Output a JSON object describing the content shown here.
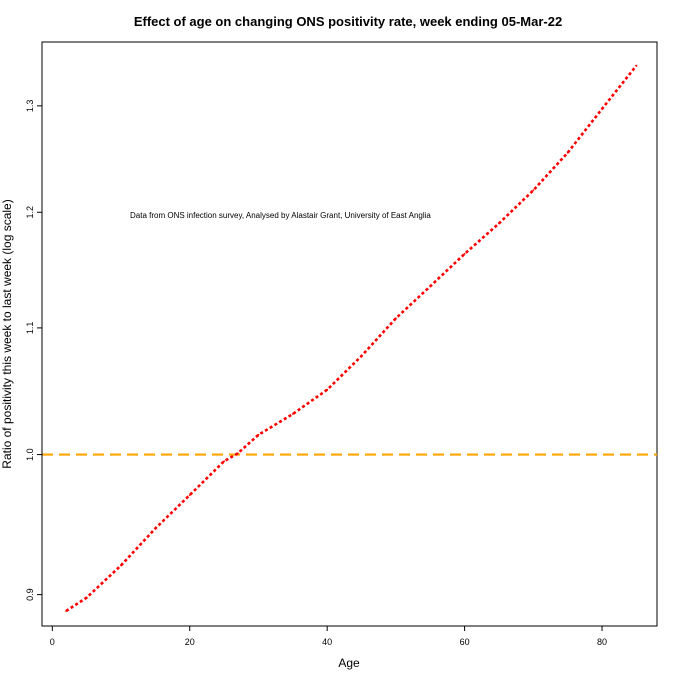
{
  "chart_data": {
    "type": "line",
    "title": "Effect of age on changing ONS positivity rate, week ending 05-Mar-22",
    "xlabel": "Age",
    "ylabel": "Ratio of positivity this week to last week (log scale)",
    "annotation": "Data from ONS infection survey, Analysed by Alastair Grant, University of East Anglia",
    "x_ticks": [
      0,
      20,
      40,
      60,
      80
    ],
    "y_ticks": [
      0.9,
      1.0,
      1.1,
      1.2,
      1.3
    ],
    "y_tick_labels": [
      "0.9",
      "1.0",
      "1.1",
      "1.2",
      "1.3"
    ],
    "xlim": [
      -1.5,
      88
    ],
    "ylim": [
      0.879,
      1.364
    ],
    "y_scale": "log",
    "grid": false,
    "reference_line": {
      "y": 1.0,
      "color": "#FFA500",
      "style": "dashed"
    },
    "series": [
      {
        "color": "#FF0000",
        "style": "dotted",
        "x": [
          2,
          5,
          10,
          15,
          20,
          25,
          27,
          30,
          35,
          40,
          45,
          50,
          55,
          60,
          65,
          70,
          75,
          80,
          85
        ],
        "y": [
          0.889,
          0.898,
          0.92,
          0.946,
          0.97,
          0.995,
          1.001,
          1.015,
          1.031,
          1.05,
          1.077,
          1.108,
          1.135,
          1.163,
          1.19,
          1.22,
          1.255,
          1.297,
          1.34
        ]
      }
    ]
  }
}
